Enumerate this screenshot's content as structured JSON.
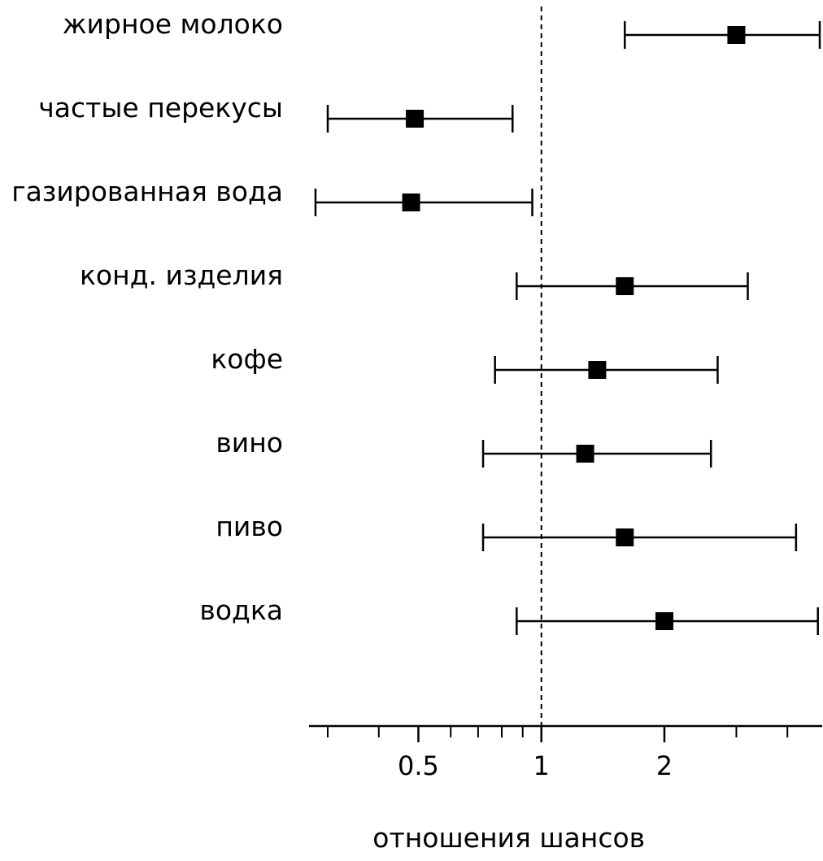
{
  "chart_data": {
    "type": "forest",
    "xlabel": "отношения шансов",
    "x_scale": "log",
    "xlim": [
      0.27,
      4.8
    ],
    "reference_line": 1,
    "ticks": [
      {
        "value": 0.5,
        "label": "0.5"
      },
      {
        "value": 1,
        "label": "1"
      },
      {
        "value": 2,
        "label": "2"
      }
    ],
    "rows": [
      {
        "label": "жирное молоко",
        "or": 3.0,
        "lower": 1.6,
        "upper": 4.8
      },
      {
        "label": "частые перекусы",
        "or": 0.49,
        "lower": 0.3,
        "upper": 0.85
      },
      {
        "label": "газированная вода",
        "or": 0.48,
        "lower": 0.28,
        "upper": 0.95
      },
      {
        "label": "конд. изделия",
        "or": 1.6,
        "lower": 0.87,
        "upper": 3.2
      },
      {
        "label": "кофе",
        "or": 1.37,
        "lower": 0.77,
        "upper": 2.7
      },
      {
        "label": "вино",
        "or": 1.28,
        "lower": 0.72,
        "upper": 2.6
      },
      {
        "label": "пиво",
        "or": 1.6,
        "lower": 0.72,
        "upper": 4.2
      },
      {
        "label": "водка",
        "or": 2.0,
        "lower": 0.87,
        "upper": 4.75
      }
    ]
  }
}
